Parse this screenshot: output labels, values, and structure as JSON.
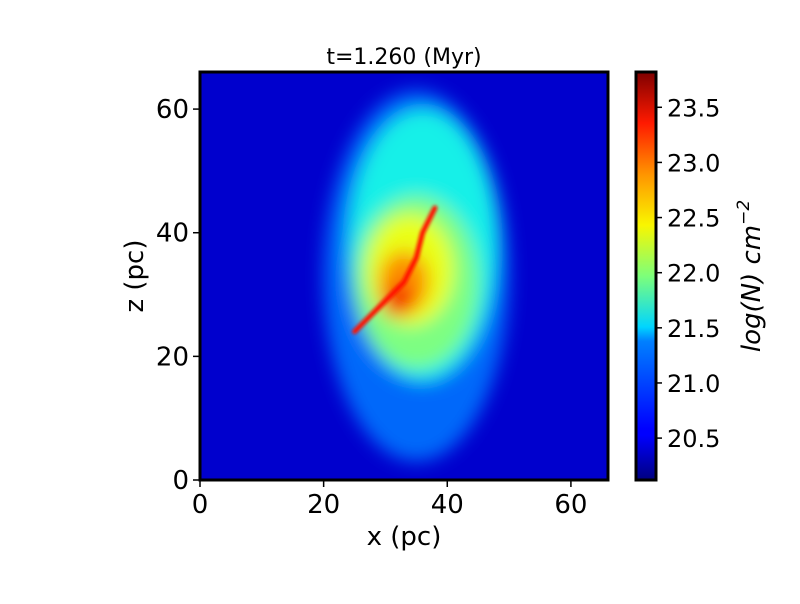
{
  "chart_data": {
    "type": "heatmap",
    "title": "t=1.260 (Myr)",
    "xlabel": "x (pc)",
    "ylabel": "z (pc)",
    "xlim": [
      0,
      66
    ],
    "ylim": [
      0,
      66
    ],
    "x_ticks": [
      0,
      20,
      40,
      60
    ],
    "y_ticks": [
      0,
      20,
      40,
      60
    ],
    "x_tick_labels": [
      "0",
      "20",
      "40",
      "60"
    ],
    "y_tick_labels": [
      "0",
      "20",
      "40",
      "60"
    ],
    "grid": false,
    "colormap": "jet",
    "colorbar": {
      "label": "log(N) cm^-2",
      "label_base": "log(N) cm",
      "label_exponent": "−2",
      "range": [
        20.12,
        23.82
      ],
      "ticks": [
        20.5,
        21.0,
        21.5,
        22.0,
        22.5,
        23.0,
        23.5
      ],
      "tick_labels": [
        "20.5",
        "21.0",
        "21.5",
        "22.0",
        "22.5",
        "23.0",
        "23.5"
      ],
      "position": "right"
    },
    "background_level": 20.4,
    "cloud_regions": [
      {
        "cx": 35,
        "cz": 33,
        "rx": 15,
        "rz": 30,
        "value": 21.0
      },
      {
        "cx": 36,
        "cz": 38,
        "rx": 12,
        "rz": 22,
        "value": 21.6
      },
      {
        "cx": 35,
        "cz": 32,
        "rx": 10,
        "rz": 14,
        "value": 22.0
      },
      {
        "cx": 34,
        "cz": 34,
        "rx": 7,
        "rz": 9,
        "value": 22.4
      },
      {
        "cx": 33,
        "cz": 32,
        "rx": 4,
        "rz": 5,
        "value": 22.9
      },
      {
        "cx": 32,
        "cz": 29,
        "rx": 2.5,
        "rz": 2.5,
        "value": 23.4
      }
    ],
    "filament": {
      "x": [
        38,
        36,
        35,
        33,
        31,
        29,
        27,
        25
      ],
      "z": [
        44,
        40,
        36,
        32,
        30,
        28,
        26,
        24
      ],
      "value": 23.3
    }
  }
}
